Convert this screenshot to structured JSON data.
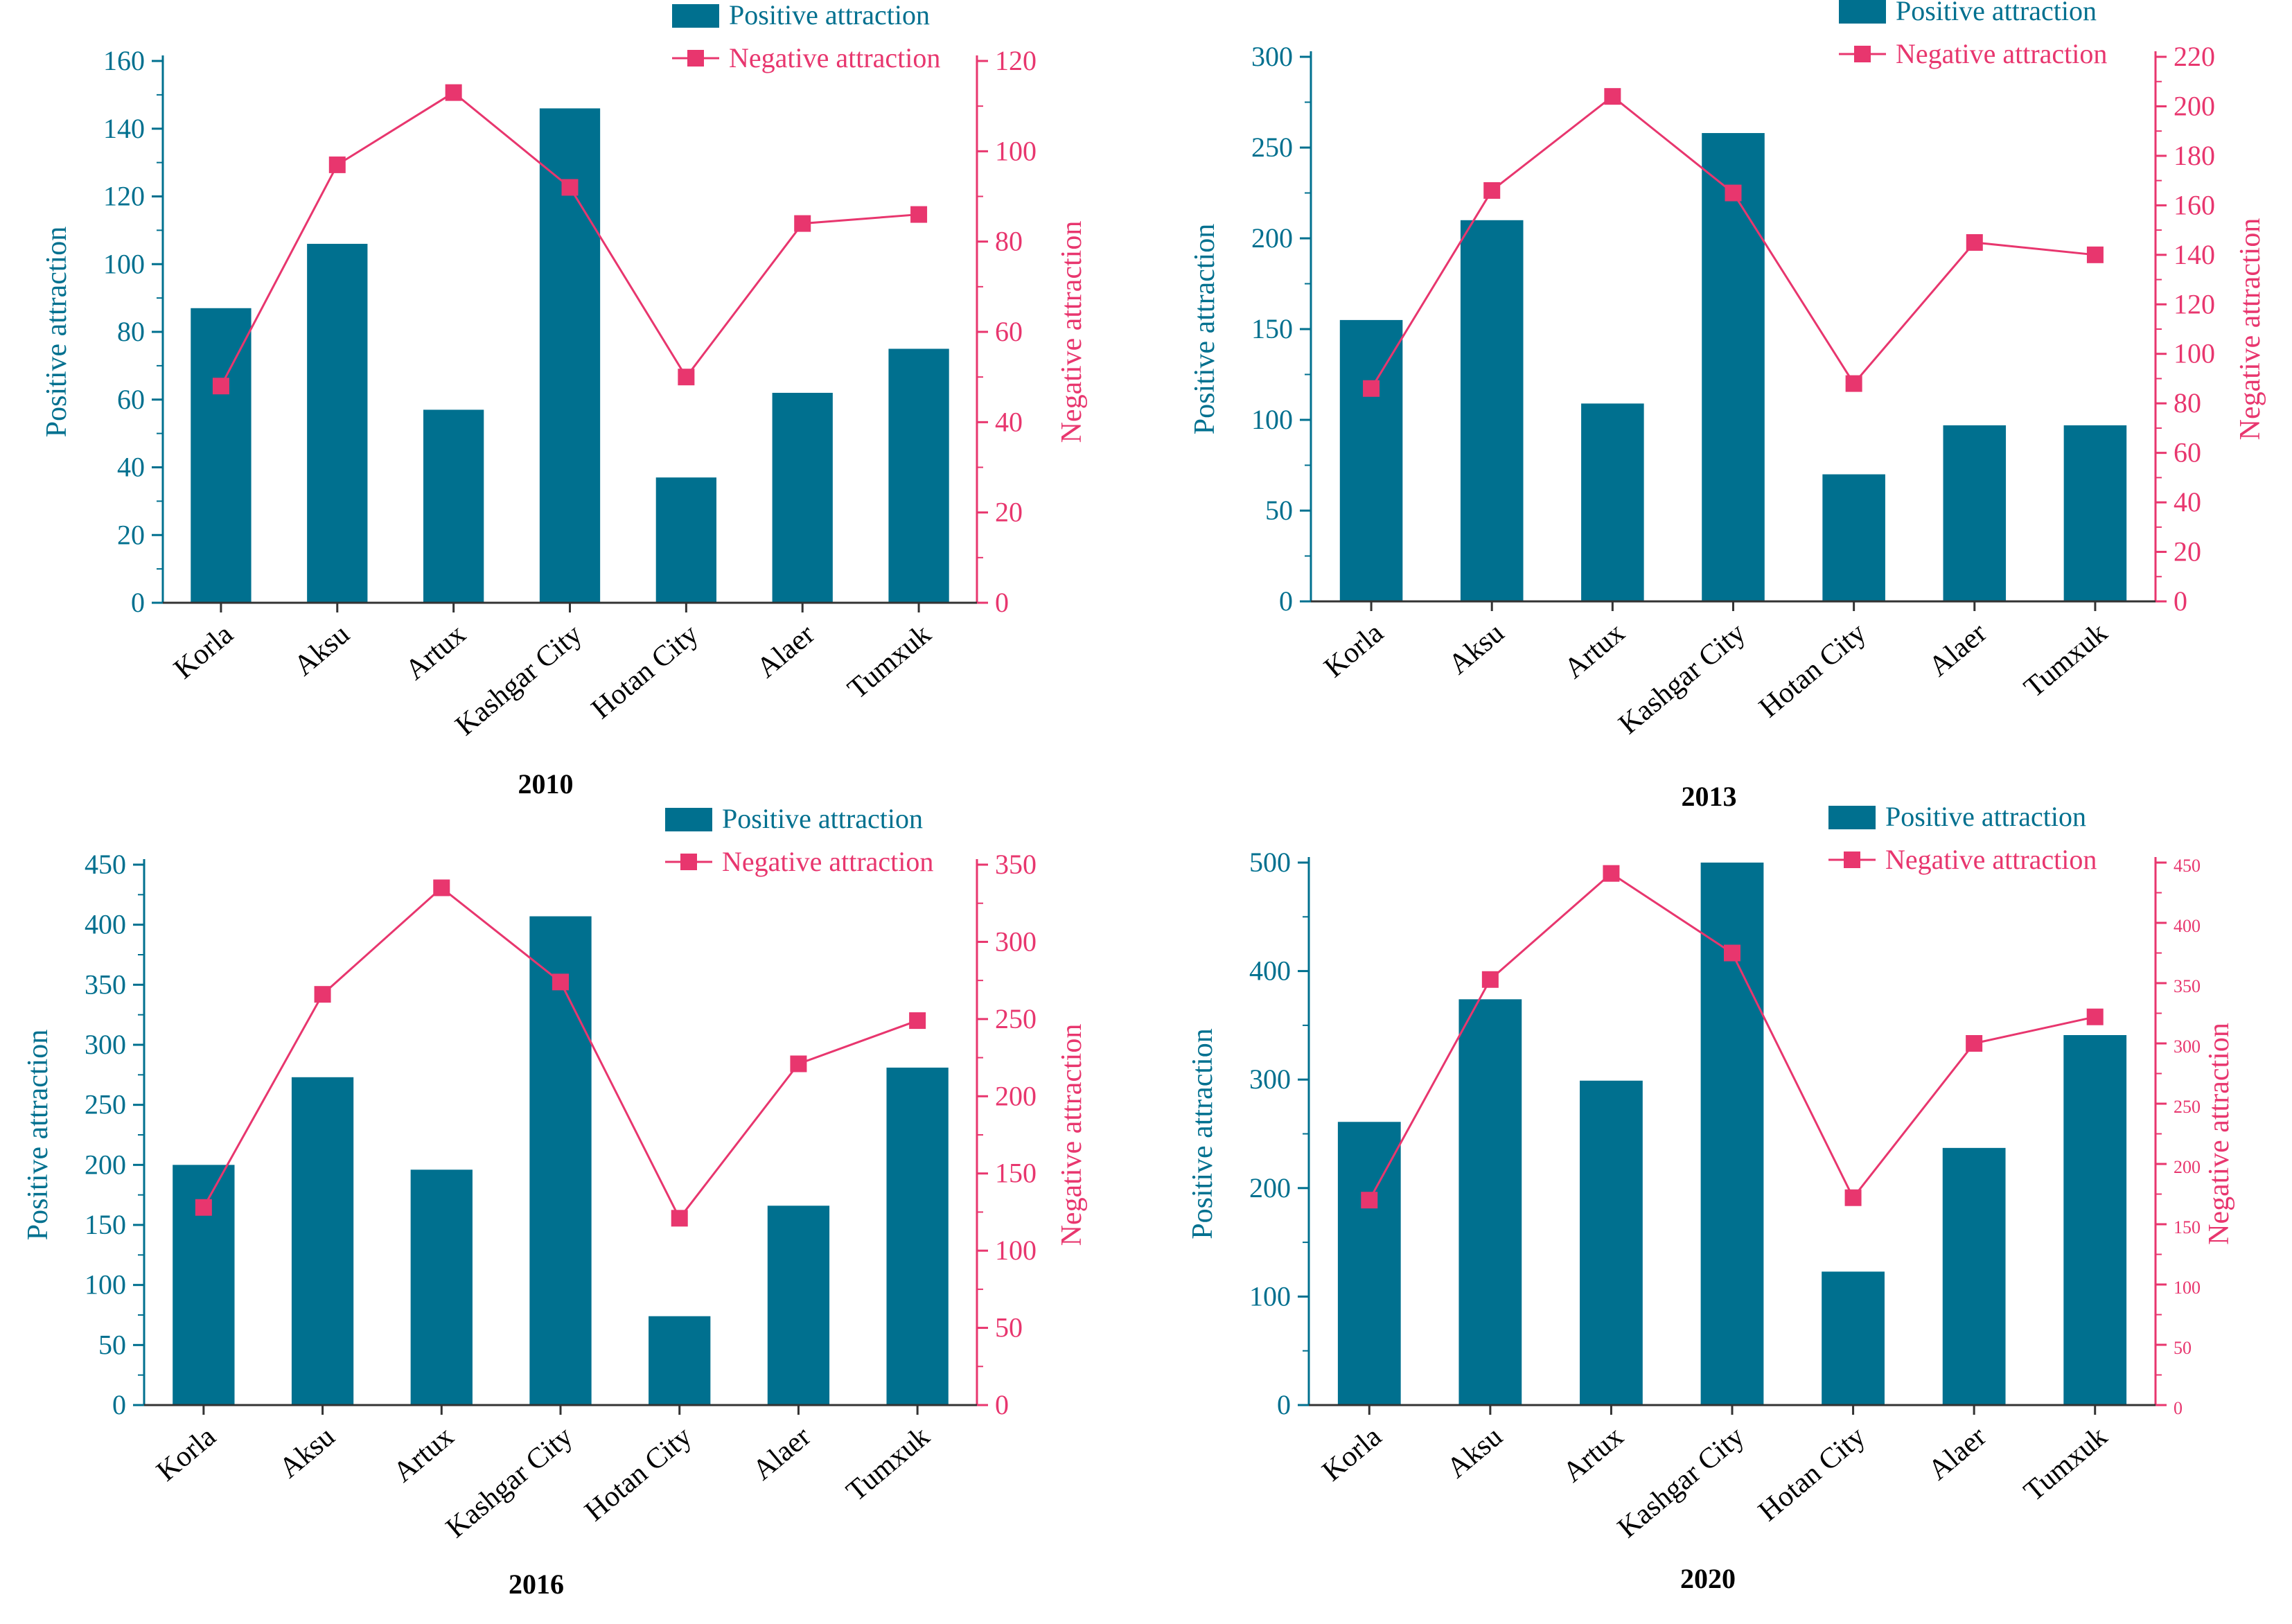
{
  "colors": {
    "bar": "#00708f",
    "line": "#e8366e",
    "axis_left": "#00708f",
    "axis_right": "#e8366e"
  },
  "chart_data": [
    {
      "type": "bar+line",
      "title": "2010",
      "categories": [
        "Korla",
        "Aksu",
        "Artux",
        "Kashgar City",
        "Hotan City",
        "Alaer",
        "Tumxuk"
      ],
      "series": [
        {
          "name": "Positive attraction",
          "kind": "bar",
          "axis": "left",
          "values": [
            87,
            106,
            57,
            146,
            37,
            62,
            75
          ]
        },
        {
          "name": "Negative attraction",
          "kind": "line",
          "axis": "right",
          "values": [
            48,
            97,
            113,
            92,
            50,
            84,
            86
          ]
        }
      ],
      "ylabel": "Positive attraction",
      "y2label": "Negative attraction",
      "ylim": [
        0,
        160
      ],
      "yticks": [
        0,
        20,
        40,
        60,
        80,
        100,
        120,
        140,
        160
      ],
      "y2lim": [
        0,
        120
      ],
      "y2ticks": [
        0,
        20,
        40,
        60,
        80,
        100,
        120
      ],
      "legend": "top-right"
    },
    {
      "type": "bar+line",
      "title": "2013",
      "categories": [
        "Korla",
        "Aksu",
        "Artux",
        "Kashgar City",
        "Hotan City",
        "Alaer",
        "Tumxuk"
      ],
      "series": [
        {
          "name": "Positive attraction",
          "kind": "bar",
          "axis": "left",
          "values": [
            155,
            210,
            109,
            258,
            70,
            97,
            97
          ]
        },
        {
          "name": "Negative attraction",
          "kind": "line",
          "axis": "right",
          "values": [
            86,
            166,
            204,
            165,
            88,
            145,
            140
          ]
        }
      ],
      "ylabel": "Positive attraction",
      "y2label": "Negative attraction",
      "ylim": [
        0,
        300
      ],
      "yticks": [
        0,
        50,
        100,
        150,
        200,
        250,
        300
      ],
      "y2lim": [
        0,
        220
      ],
      "y2ticks": [
        0,
        20,
        40,
        60,
        80,
        100,
        120,
        140,
        160,
        180,
        200,
        220
      ],
      "legend": "top-right"
    },
    {
      "type": "bar+line",
      "title": "2016",
      "categories": [
        "Korla",
        "Aksu",
        "Artux",
        "Kashgar City",
        "Hotan City",
        "Alaer",
        "Tumxuk"
      ],
      "series": [
        {
          "name": "Positive attraction",
          "kind": "bar",
          "axis": "left",
          "values": [
            200,
            273,
            196,
            407,
            74,
            166,
            281
          ]
        },
        {
          "name": "Negative attraction",
          "kind": "line",
          "axis": "right",
          "values": [
            128,
            266,
            335,
            274,
            121,
            221,
            249
          ]
        }
      ],
      "ylabel": "Positive attraction",
      "y2label": "Negative attraction",
      "ylim": [
        0,
        450
      ],
      "yticks": [
        0,
        50,
        100,
        150,
        200,
        250,
        300,
        350,
        400,
        450
      ],
      "y2lim": [
        0,
        350
      ],
      "y2ticks": [
        0,
        50,
        100,
        150,
        200,
        250,
        300,
        350
      ],
      "legend": "top-right"
    },
    {
      "type": "bar+line",
      "title": "2020",
      "categories": [
        "Korla",
        "Aksu",
        "Artux",
        "Kashgar City",
        "Hotan City",
        "Alaer",
        "Tumxuk"
      ],
      "series": [
        {
          "name": "Positive attraction",
          "kind": "bar",
          "axis": "left",
          "values": [
            261,
            374,
            299,
            500,
            123,
            237,
            341
          ]
        },
        {
          "name": "Negative attraction",
          "kind": "line",
          "axis": "right",
          "values": [
            170,
            353,
            441,
            375,
            172,
            300,
            322
          ]
        }
      ],
      "ylabel": "Positive attraction",
      "y2label": "Negative attraction",
      "ylim": [
        0,
        500
      ],
      "yticks": [
        0,
        100,
        200,
        300,
        400,
        500
      ],
      "y2lim": [
        0,
        450
      ],
      "y2ticks": [
        0,
        50,
        100,
        150,
        200,
        250,
        300,
        350,
        400,
        450
      ],
      "legend": "top-right"
    }
  ]
}
